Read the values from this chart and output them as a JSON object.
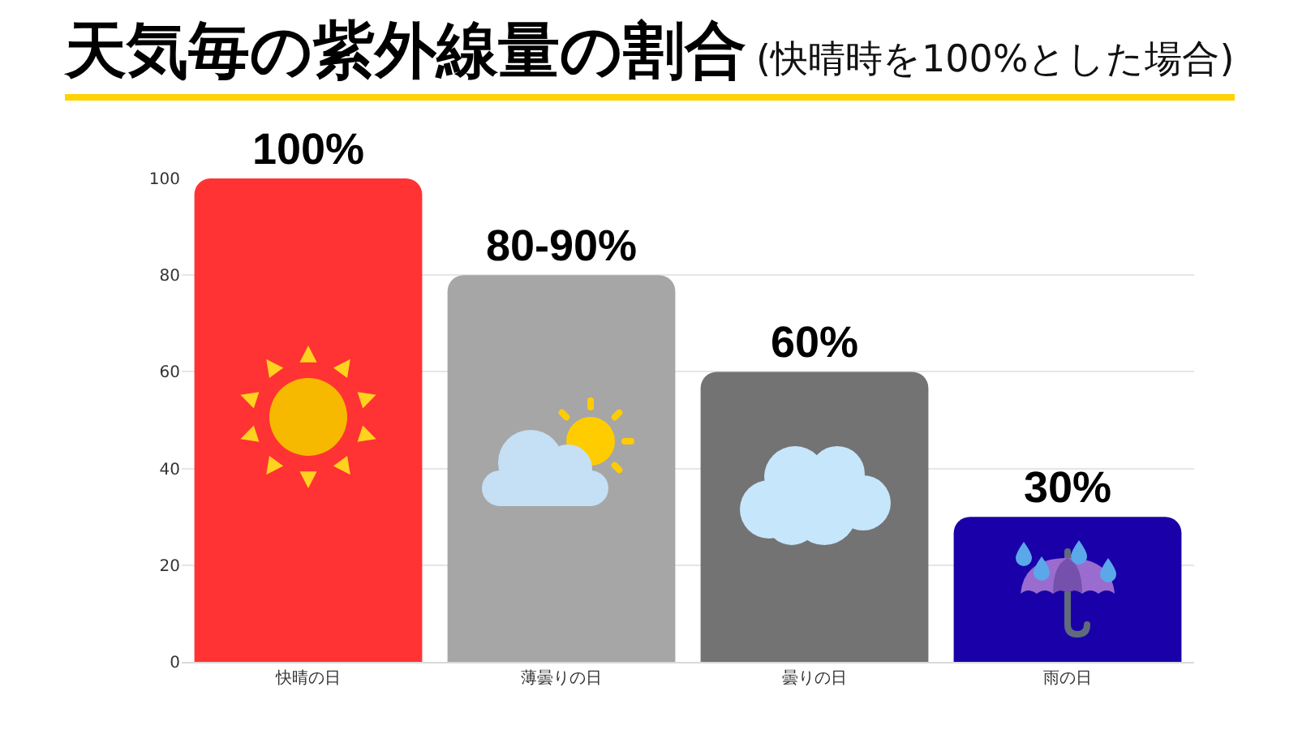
{
  "chart_data": {
    "type": "bar",
    "title": "天気毎の紫外線量の割合",
    "subtitle": "(快晴時を100%とした場合)",
    "categories": [
      "快晴の日",
      "薄曇りの日",
      "曇りの日",
      "雨の日"
    ],
    "values": [
      100,
      80,
      60,
      30
    ],
    "colors": [
      "#ff3333",
      "#a6a6a6",
      "#737373",
      "#1a00a8"
    ],
    "value_labels": [
      "100%",
      "80-90%",
      "60%",
      "30%"
    ],
    "ylim": [
      0,
      100
    ],
    "yticks": [
      0,
      20,
      40,
      60,
      80,
      100
    ],
    "grid": "y"
  }
}
